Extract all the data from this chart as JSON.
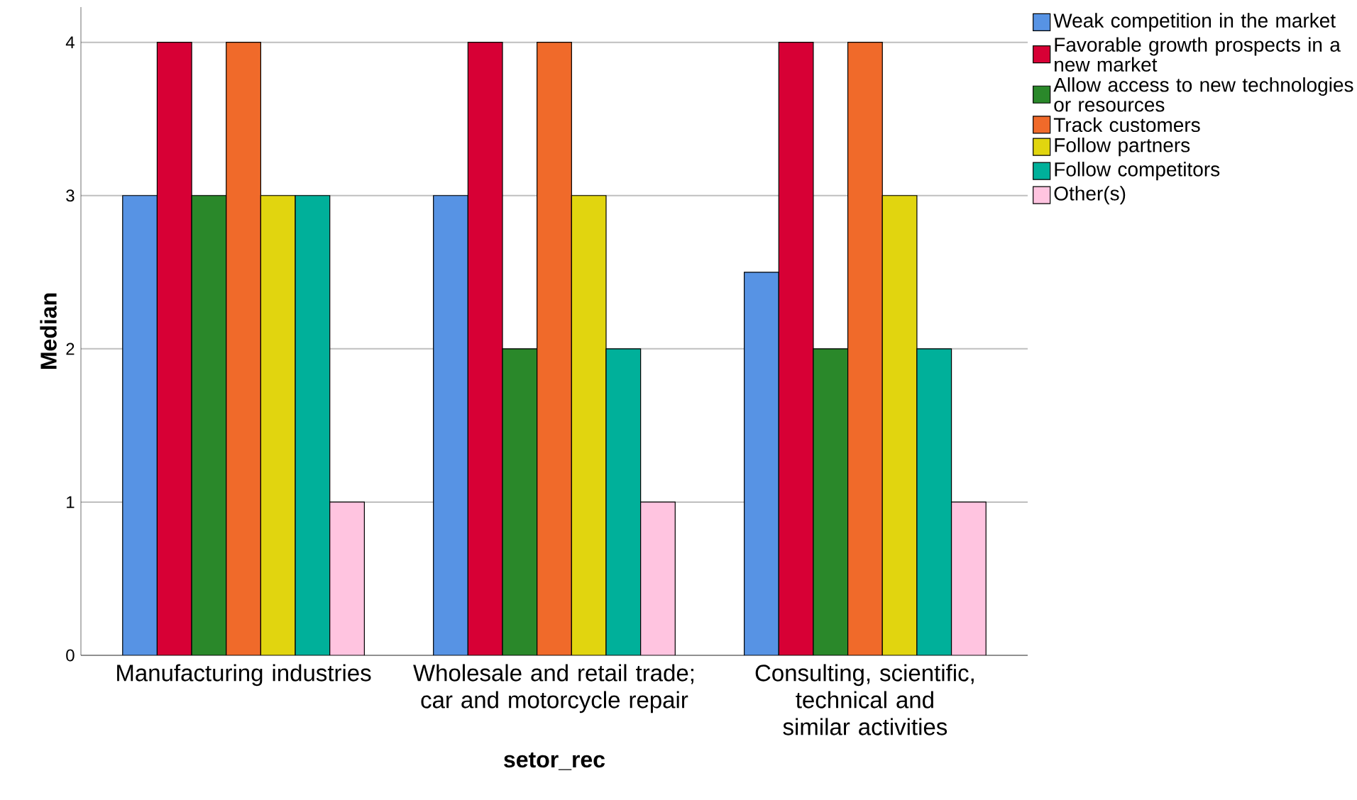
{
  "chart_data": {
    "type": "bar",
    "xlabel": "setor_rec",
    "ylabel": "Median",
    "categories": [
      "Manufacturing industries",
      "Wholesale and retail trade; car and motorcycle repair",
      "Consulting, scientific, technical and similar activities"
    ],
    "series": [
      {
        "name": "Weak competition in the market",
        "color": "#5793e4",
        "values": [
          3,
          3,
          2.5
        ]
      },
      {
        "name": "Favorable growth prospects in a new market",
        "color": "#d70035",
        "values": [
          4,
          4,
          4
        ]
      },
      {
        "name": "Allow access to new technologies or resources",
        "color": "#2a882a",
        "values": [
          3,
          2,
          2
        ]
      },
      {
        "name": "Track customers",
        "color": "#f06a2a",
        "values": [
          4,
          4,
          4
        ]
      },
      {
        "name": "Follow partners",
        "color": "#e1d50f",
        "values": [
          3,
          3,
          3
        ]
      },
      {
        "name": "Follow competitors",
        "color": "#00b09a",
        "values": [
          3,
          2,
          2
        ]
      },
      {
        "name": "Other(s)",
        "color": "#ffc4e0",
        "values": [
          1,
          1,
          1
        ]
      }
    ],
    "ylim": [
      0,
      4.23
    ],
    "yticks": [
      0,
      1,
      2,
      3,
      4
    ],
    "grid": "y",
    "legend": "top right"
  }
}
